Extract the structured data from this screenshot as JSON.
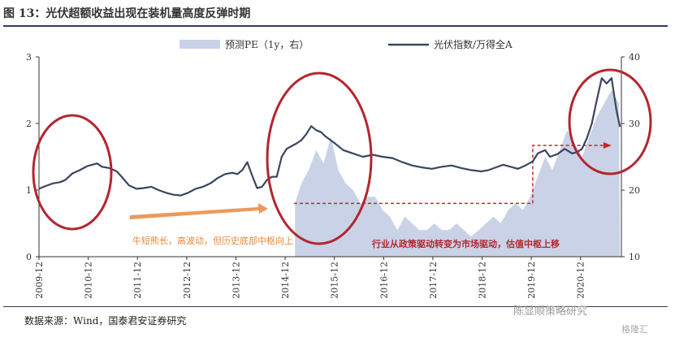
{
  "figure_title": "图 13：光伏超额收益出现在装机量高度反弹时期",
  "source_note": "数据来源：Wind，国泰君安证券研究",
  "watermark": {
    "account": "陈显顺策略研究",
    "brand": "格隆汇"
  },
  "colors": {
    "index_line": "#3a4660",
    "pe_area": "#c9d2e6",
    "ellipse": "#b3262e",
    "arrow_orange": "#ea9a5c",
    "annotation_orange": "#e8873a",
    "annotation_red": "#b3262e",
    "dashed": "#c6262e"
  },
  "chart_data": {
    "type": "line",
    "title": "图 13：光伏超额收益出现在装机量高度反弹时期",
    "legend": [
      {
        "label": "预测PE（1y，右）",
        "kind": "area",
        "axis": "right"
      },
      {
        "label": "光伏指数/万得全A",
        "kind": "line",
        "axis": "left"
      }
    ],
    "x_range": [
      "2009-12",
      "2021-06"
    ],
    "x_ticks": [
      "2009-12",
      "2010-12",
      "2011-12",
      "2012-12",
      "2013-12",
      "2014-12",
      "2015-12",
      "2016-12",
      "2017-12",
      "2018-12",
      "2019-12",
      "2020-12"
    ],
    "y_left": {
      "min": 0,
      "max": 3,
      "ticks": [
        "0",
        "1",
        "2",
        "3"
      ]
    },
    "y_right": {
      "min": 10,
      "max": 40,
      "ticks": [
        "10",
        "20",
        "30",
        "40"
      ]
    },
    "series": [
      {
        "name": "光伏指数/万得全A",
        "axis": "left",
        "points": [
          [
            2009.92,
            1.02
          ],
          [
            2010.05,
            1.06
          ],
          [
            2010.2,
            1.1
          ],
          [
            2010.35,
            1.12
          ],
          [
            2010.45,
            1.15
          ],
          [
            2010.6,
            1.25
          ],
          [
            2010.75,
            1.3
          ],
          [
            2010.9,
            1.36
          ],
          [
            2011.0,
            1.38
          ],
          [
            2011.1,
            1.4
          ],
          [
            2011.2,
            1.35
          ],
          [
            2011.35,
            1.33
          ],
          [
            2011.5,
            1.28
          ],
          [
            2011.6,
            1.2
          ],
          [
            2011.75,
            1.07
          ],
          [
            2011.9,
            1.02
          ],
          [
            2012.05,
            1.03
          ],
          [
            2012.2,
            1.05
          ],
          [
            2012.35,
            1.0
          ],
          [
            2012.5,
            0.96
          ],
          [
            2012.65,
            0.93
          ],
          [
            2012.8,
            0.92
          ],
          [
            2012.95,
            0.96
          ],
          [
            2013.1,
            1.02
          ],
          [
            2013.25,
            1.05
          ],
          [
            2013.4,
            1.1
          ],
          [
            2013.55,
            1.18
          ],
          [
            2013.7,
            1.24
          ],
          [
            2013.85,
            1.26
          ],
          [
            2013.95,
            1.24
          ],
          [
            2014.05,
            1.3
          ],
          [
            2014.15,
            1.42
          ],
          [
            2014.25,
            1.22
          ],
          [
            2014.35,
            1.03
          ],
          [
            2014.45,
            1.05
          ],
          [
            2014.55,
            1.15
          ],
          [
            2014.65,
            1.2
          ],
          [
            2014.75,
            1.2
          ],
          [
            2014.85,
            1.5
          ],
          [
            2014.95,
            1.62
          ],
          [
            2015.05,
            1.66
          ],
          [
            2015.15,
            1.7
          ],
          [
            2015.25,
            1.75
          ],
          [
            2015.35,
            1.84
          ],
          [
            2015.45,
            1.96
          ],
          [
            2015.55,
            1.9
          ],
          [
            2015.65,
            1.87
          ],
          [
            2015.75,
            1.8
          ],
          [
            2015.9,
            1.72
          ],
          [
            2016.1,
            1.6
          ],
          [
            2016.3,
            1.55
          ],
          [
            2016.5,
            1.5
          ],
          [
            2016.7,
            1.53
          ],
          [
            2016.9,
            1.5
          ],
          [
            2017.1,
            1.48
          ],
          [
            2017.3,
            1.42
          ],
          [
            2017.5,
            1.37
          ],
          [
            2017.7,
            1.34
          ],
          [
            2017.9,
            1.32
          ],
          [
            2018.1,
            1.35
          ],
          [
            2018.3,
            1.37
          ],
          [
            2018.5,
            1.33
          ],
          [
            2018.7,
            1.3
          ],
          [
            2018.9,
            1.28
          ],
          [
            2019.05,
            1.3
          ],
          [
            2019.2,
            1.34
          ],
          [
            2019.35,
            1.38
          ],
          [
            2019.5,
            1.35
          ],
          [
            2019.65,
            1.32
          ],
          [
            2019.8,
            1.37
          ],
          [
            2019.95,
            1.43
          ],
          [
            2020.05,
            1.55
          ],
          [
            2020.2,
            1.6
          ],
          [
            2020.3,
            1.5
          ],
          [
            2020.45,
            1.54
          ],
          [
            2020.6,
            1.62
          ],
          [
            2020.75,
            1.55
          ],
          [
            2020.85,
            1.57
          ],
          [
            2020.95,
            1.62
          ],
          [
            2021.05,
            1.78
          ],
          [
            2021.15,
            2.0
          ],
          [
            2021.25,
            2.35
          ],
          [
            2021.35,
            2.68
          ],
          [
            2021.45,
            2.6
          ],
          [
            2021.55,
            2.68
          ],
          [
            2021.65,
            2.2
          ],
          [
            2021.72,
            1.95
          ]
        ]
      },
      {
        "name": "预测PE（1y，右）",
        "axis": "right",
        "points": [
          [
            2015.12,
            10
          ],
          [
            2015.12,
            18
          ],
          [
            2015.25,
            21
          ],
          [
            2015.4,
            23
          ],
          [
            2015.55,
            26
          ],
          [
            2015.7,
            24
          ],
          [
            2015.85,
            28
          ],
          [
            2016.0,
            23
          ],
          [
            2016.15,
            21
          ],
          [
            2016.3,
            20
          ],
          [
            2016.45,
            18
          ],
          [
            2016.6,
            19
          ],
          [
            2016.75,
            19
          ],
          [
            2016.9,
            17
          ],
          [
            2017.05,
            16
          ],
          [
            2017.2,
            14
          ],
          [
            2017.35,
            16
          ],
          [
            2017.5,
            15
          ],
          [
            2017.65,
            14
          ],
          [
            2017.8,
            14
          ],
          [
            2017.95,
            15
          ],
          [
            2018.1,
            14
          ],
          [
            2018.25,
            14
          ],
          [
            2018.4,
            15
          ],
          [
            2018.55,
            14
          ],
          [
            2018.7,
            13
          ],
          [
            2018.85,
            14
          ],
          [
            2019.0,
            15
          ],
          [
            2019.15,
            16
          ],
          [
            2019.3,
            15
          ],
          [
            2019.45,
            17
          ],
          [
            2019.6,
            18
          ],
          [
            2019.75,
            17
          ],
          [
            2019.9,
            19
          ],
          [
            2020.05,
            22
          ],
          [
            2020.2,
            25
          ],
          [
            2020.35,
            23
          ],
          [
            2020.5,
            26
          ],
          [
            2020.65,
            29
          ],
          [
            2020.8,
            27
          ],
          [
            2020.95,
            25
          ],
          [
            2021.1,
            28
          ],
          [
            2021.25,
            31
          ],
          [
            2021.4,
            33
          ],
          [
            2021.55,
            35
          ],
          [
            2021.7,
            33
          ],
          [
            2021.72,
            10
          ]
        ]
      }
    ],
    "annotations": [
      {
        "text": "牛短熊长，高波动，但历史底部中枢向上"
      },
      {
        "text": "行业从政策驱动转变为市场驱动，估值中枢上移"
      }
    ]
  }
}
